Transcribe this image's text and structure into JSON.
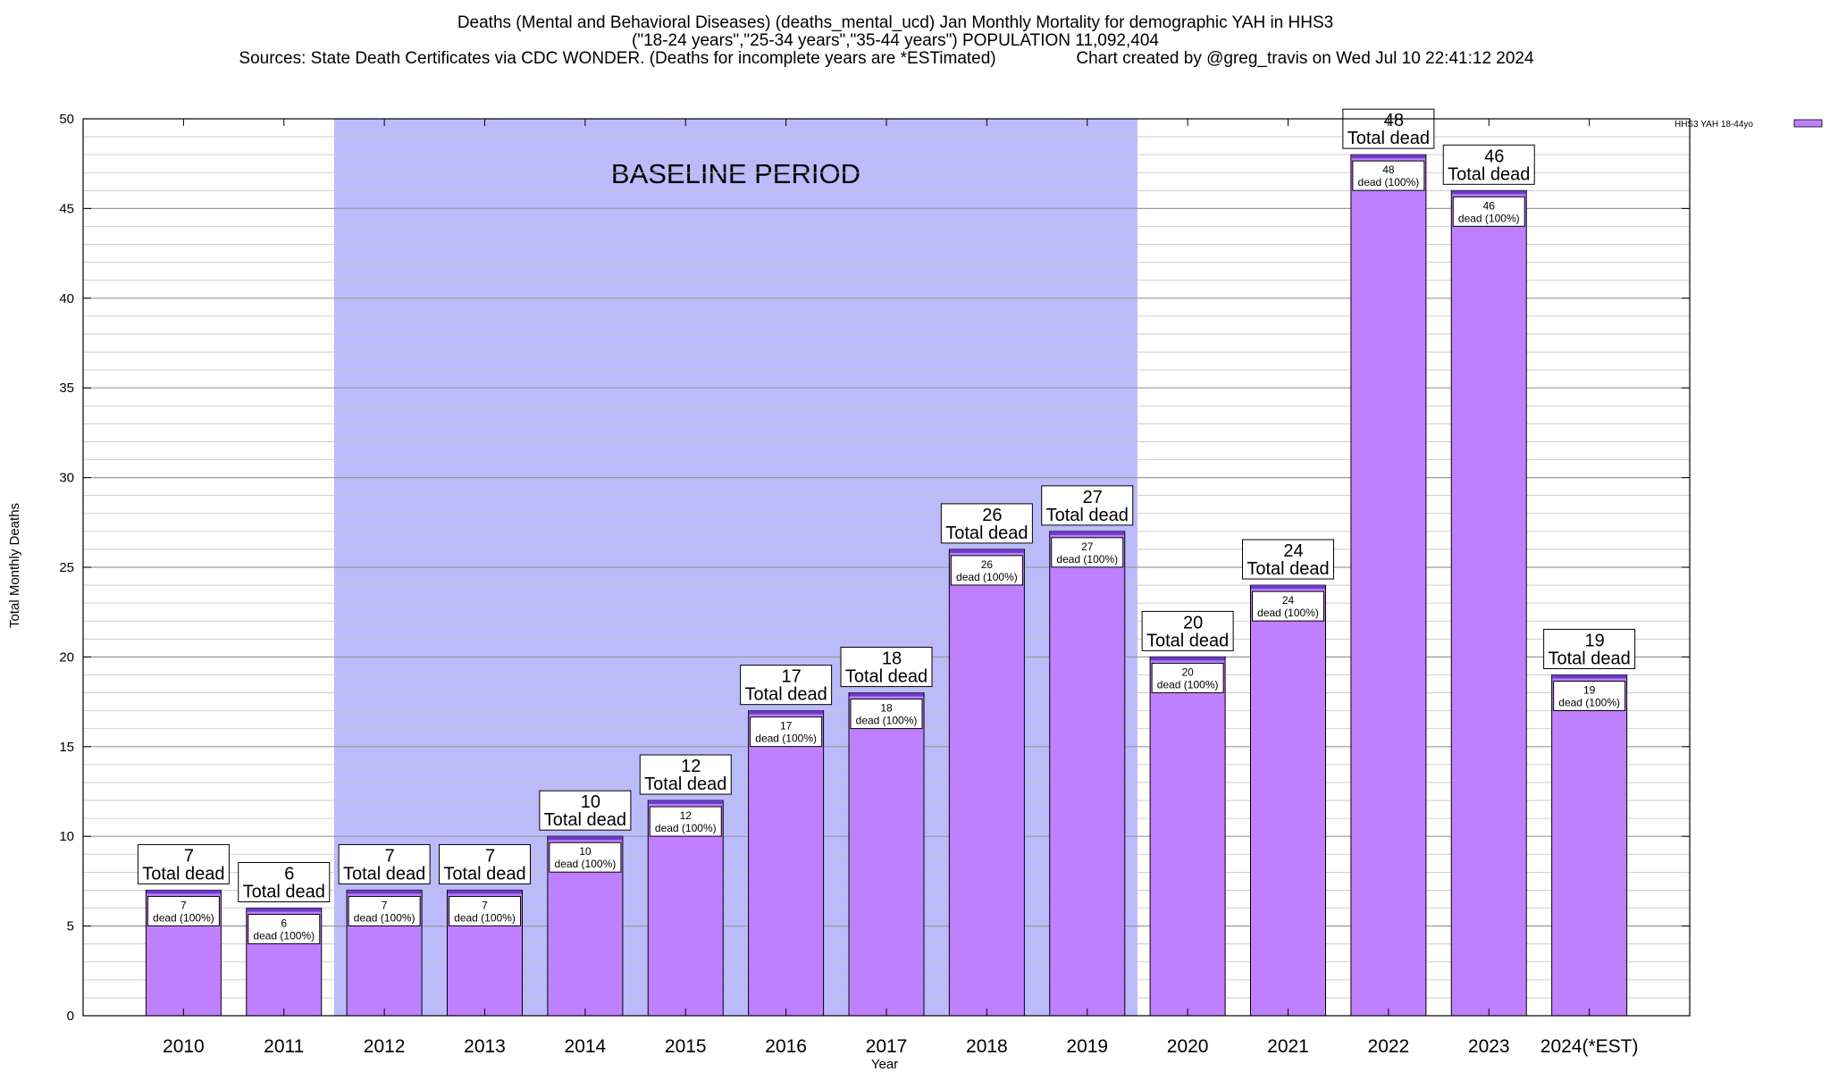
{
  "chart_data": {
    "type": "bar",
    "title_lines": [
      "Deaths (Mental and Behavioral Diseases) (deaths_mental_ucd) Jan Monthly Mortality for demographic YAH in HHS3",
      "(\"18-24 years\",\"25-34 years\",\"35-44 years\") POPULATION 11,092,404",
      "Sources: State Death Certificates via CDC WONDER. (Deaths for incomplete years are *ESTimated)                 Chart created by @greg_travis on Wed Jul 10 22:41:12 2024"
    ],
    "xlabel": "Year",
    "ylabel": "Total Monthly Deaths",
    "ylim": [
      0,
      50
    ],
    "yticks": [
      0,
      5,
      10,
      15,
      20,
      25,
      30,
      35,
      40,
      45,
      50
    ],
    "y_minor_step": 1,
    "grid": true,
    "legend_position": "top-right",
    "categories": [
      "2010",
      "2011",
      "2012",
      "2013",
      "2014",
      "2015",
      "2016",
      "2017",
      "2018",
      "2019",
      "2020",
      "2021",
      "2022",
      "2023",
      "2024(*EST)"
    ],
    "series": [
      {
        "name": "HHS3 YAH 18-44yo",
        "values": [
          7,
          6,
          7,
          7,
          10,
          12,
          17,
          18,
          26,
          27,
          20,
          24,
          48,
          46,
          19
        ],
        "color": "#bf80ff",
        "cap_color": "#6a3dc8"
      }
    ],
    "total_label_suffix": "Total dead",
    "inner_label_suffix": "dead (100%)",
    "baseline_period": {
      "label": "BASELINE PERIOD",
      "from": "2012",
      "to": "2019",
      "color": "#bbbbfb"
    }
  }
}
